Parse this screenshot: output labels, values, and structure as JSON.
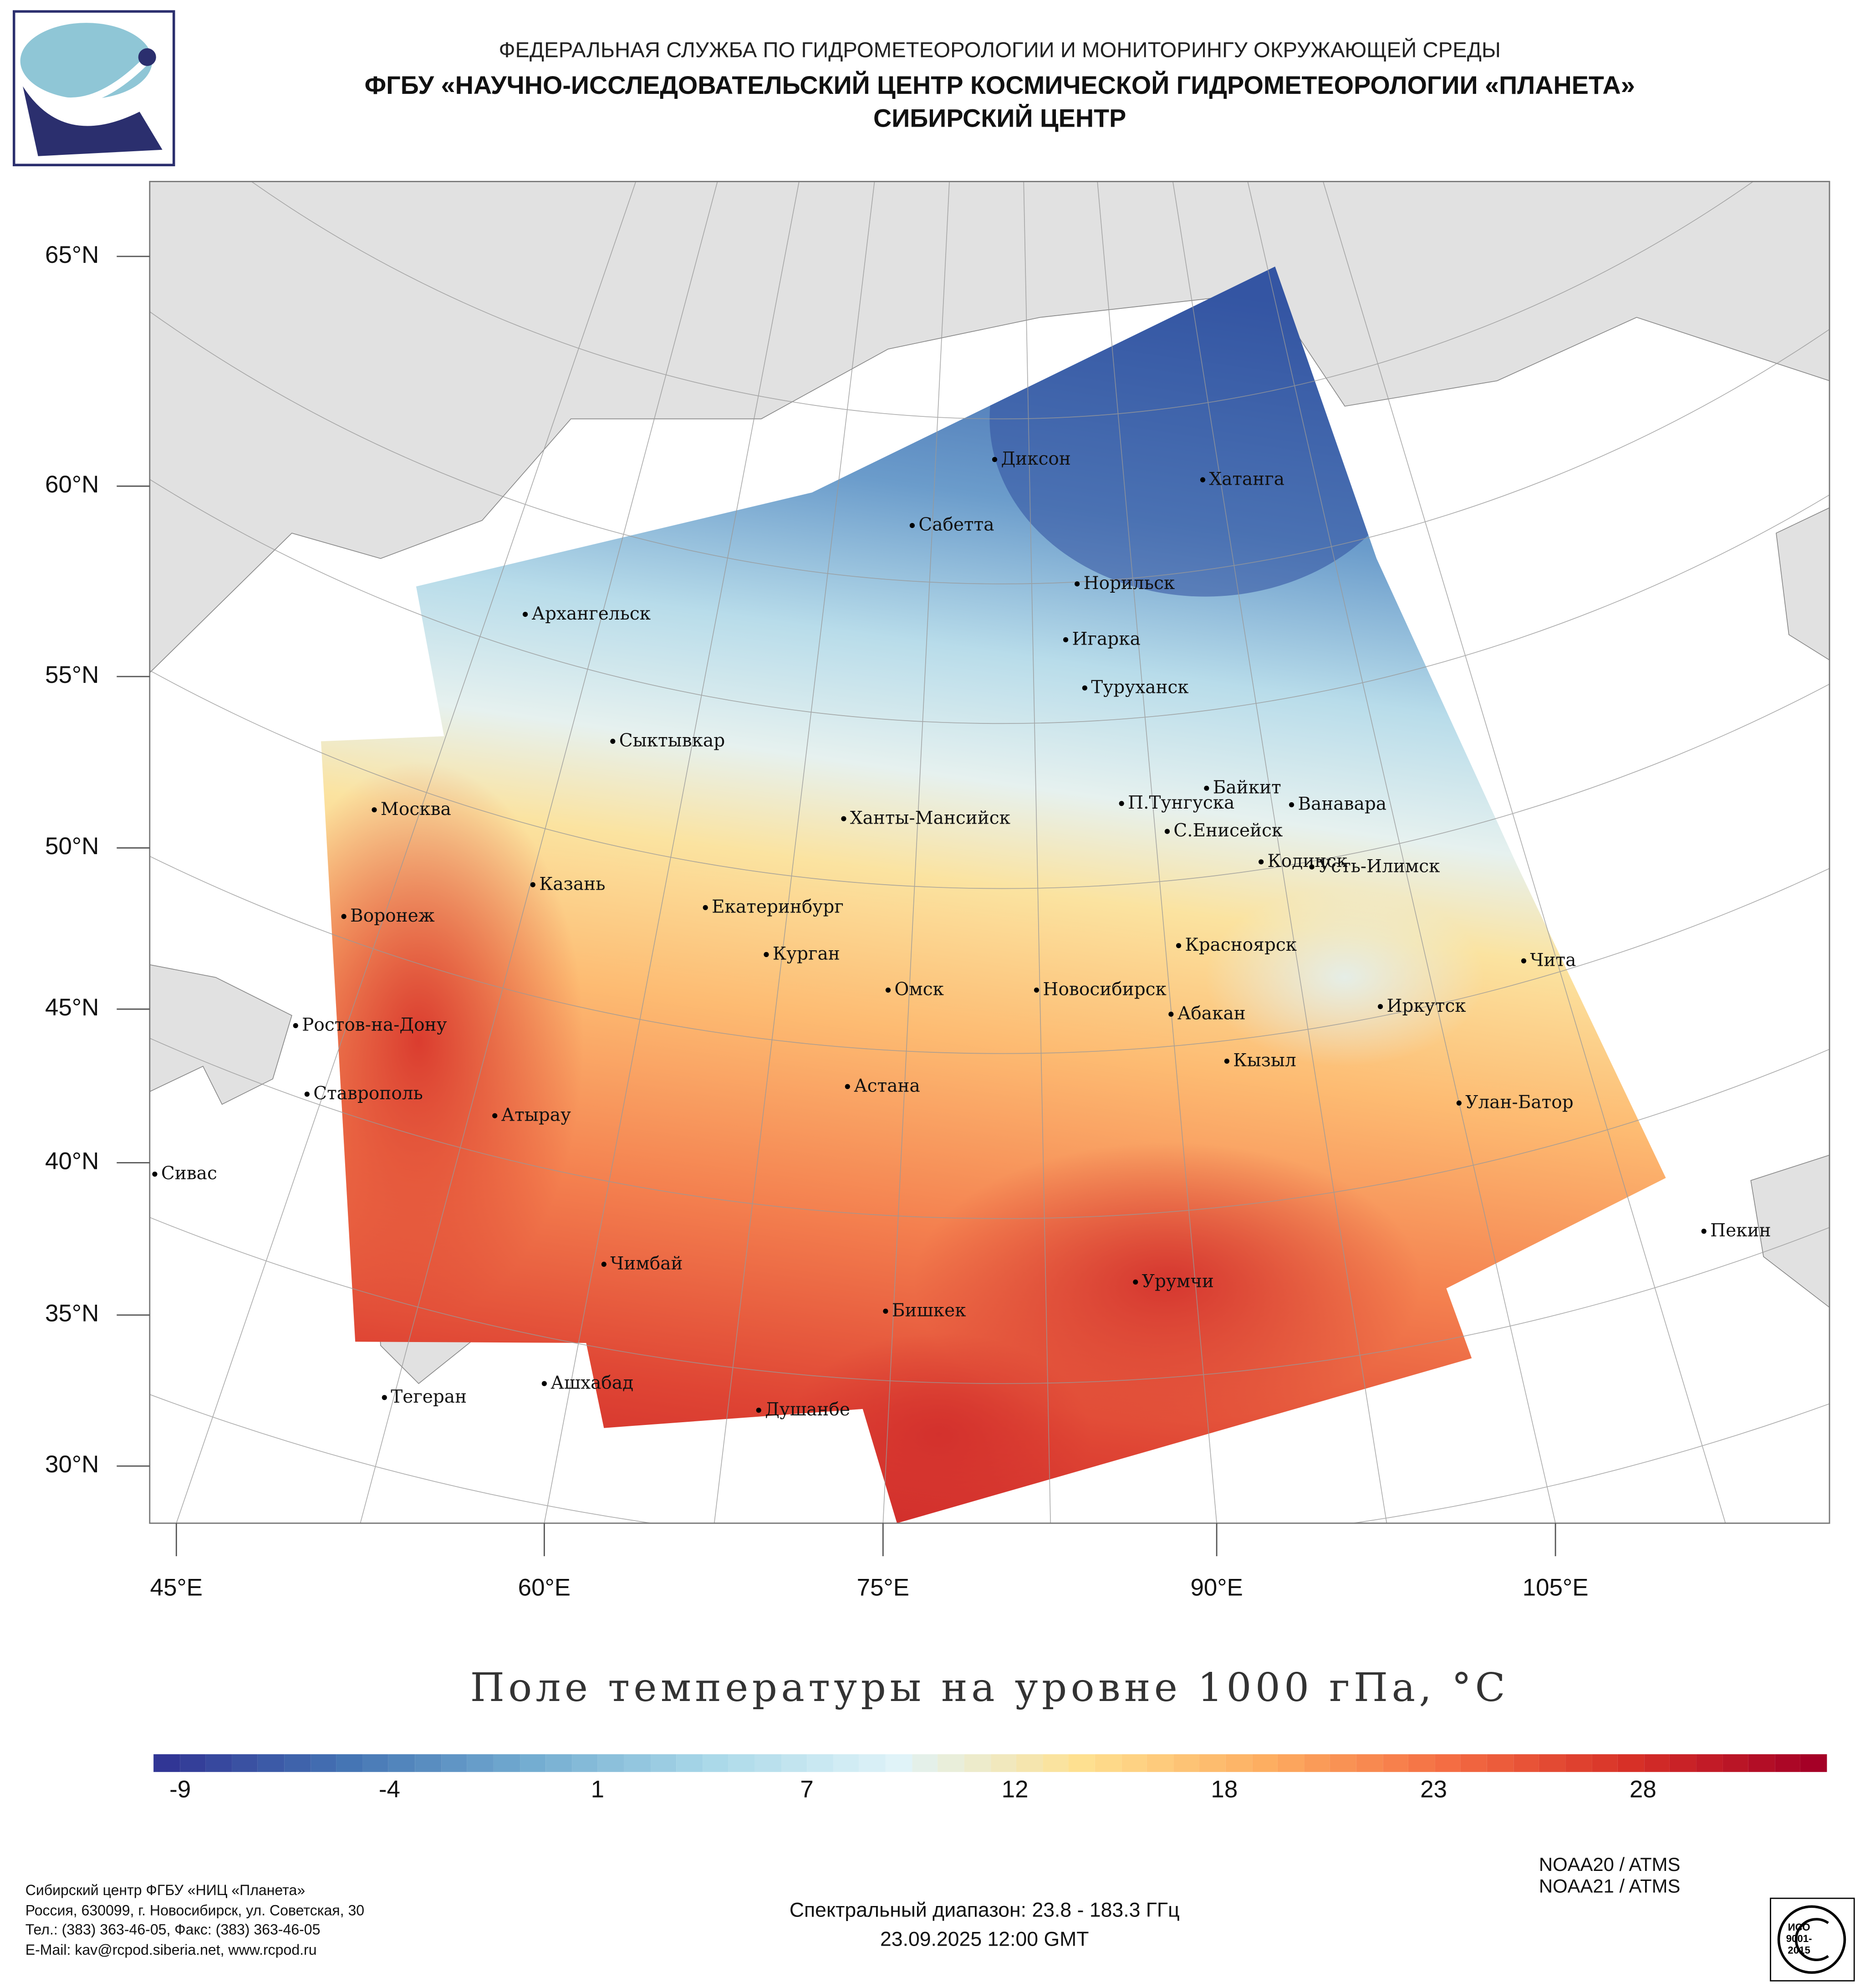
{
  "header": {
    "line1": "ФЕДЕРАЛЬНАЯ СЛУЖБА ПО ГИДРОМЕТЕОРОЛОГИИ И МОНИТОРИНГУ ОКРУЖАЮЩЕЙ СРЕДЫ",
    "line2": "ФГБУ «НАУЧНО-ИССЛЕДОВАТЕЛЬСКИЙ ЦЕНТР КОСМИЧЕСКОЙ ГИДРОМЕТЕОРОЛОГИИ «ПЛАНЕТА»",
    "line3": "СИБИРСКИЙ ЦЕНТР"
  },
  "map": {
    "lat_labels": [
      "65°N",
      "60°N",
      "55°N",
      "50°N",
      "45°N",
      "40°N",
      "35°N",
      "30°N"
    ],
    "lon_labels": [
      "45°E",
      "60°E",
      "75°E",
      "90°E",
      "105°E"
    ],
    "cities": [
      "Диксон",
      "Хатанга",
      "Сабетта",
      "Норильск",
      "Архангельск",
      "Игарка",
      "Туруханск",
      "Сыктывкар",
      "Байкит",
      "Москва",
      "П.Тунгуска",
      "Ванавара",
      "Ханты-Мансийск",
      "С.Енисейск",
      "Кодинск",
      "Усть-Илимск",
      "Казань",
      "Екатеринбург",
      "Воронеж",
      "Красноярск",
      "Курган",
      "Чита",
      "Омск",
      "Новосибирск",
      "Иркутск",
      "Абакан",
      "Ростов-на-Дону",
      "Кызыл",
      "Астана",
      "Ставрополь",
      "Улан-Батор",
      "Атырау",
      "Сивас",
      "Пекин",
      "Чимбай",
      "Урумчи",
      "Бишкек",
      "Ашхабад",
      "Тегеран",
      "Душанбе"
    ],
    "land_color": "#e1e1e1"
  },
  "title": "Поле температуры на уровне 1000 гПа, °C",
  "colorbar": {
    "ticks": [
      "-9",
      "-4",
      "1",
      "7",
      "12",
      "18",
      "23",
      "28"
    ],
    "colors": [
      "#313695",
      "#4575b4",
      "#74add1",
      "#abd9e9",
      "#e0f3f8",
      "#fee090",
      "#fdae61",
      "#f46d43",
      "#d73027",
      "#a50026"
    ]
  },
  "footer": {
    "org": "Сибирский центр ФГБУ «НИЦ «Планета»",
    "address": "Россия, 630099, г. Новосибирск, ул. Советская, 30",
    "phone": "Тел.: (383) 363-46-05, Факс: (383) 363-46-05",
    "email": "E-Mail: kav@rcpod.siberia.net, www.rcpod.ru",
    "spectral": "Спектральный диапазон: 23.8 - 183.3 ГГц",
    "datetime": "23.09.2025 12:00 GMT",
    "sat1": "NOAA20 / ATMS",
    "sat2": "NOAA21 / ATMS",
    "cert": "ИСО 9001-2015"
  }
}
